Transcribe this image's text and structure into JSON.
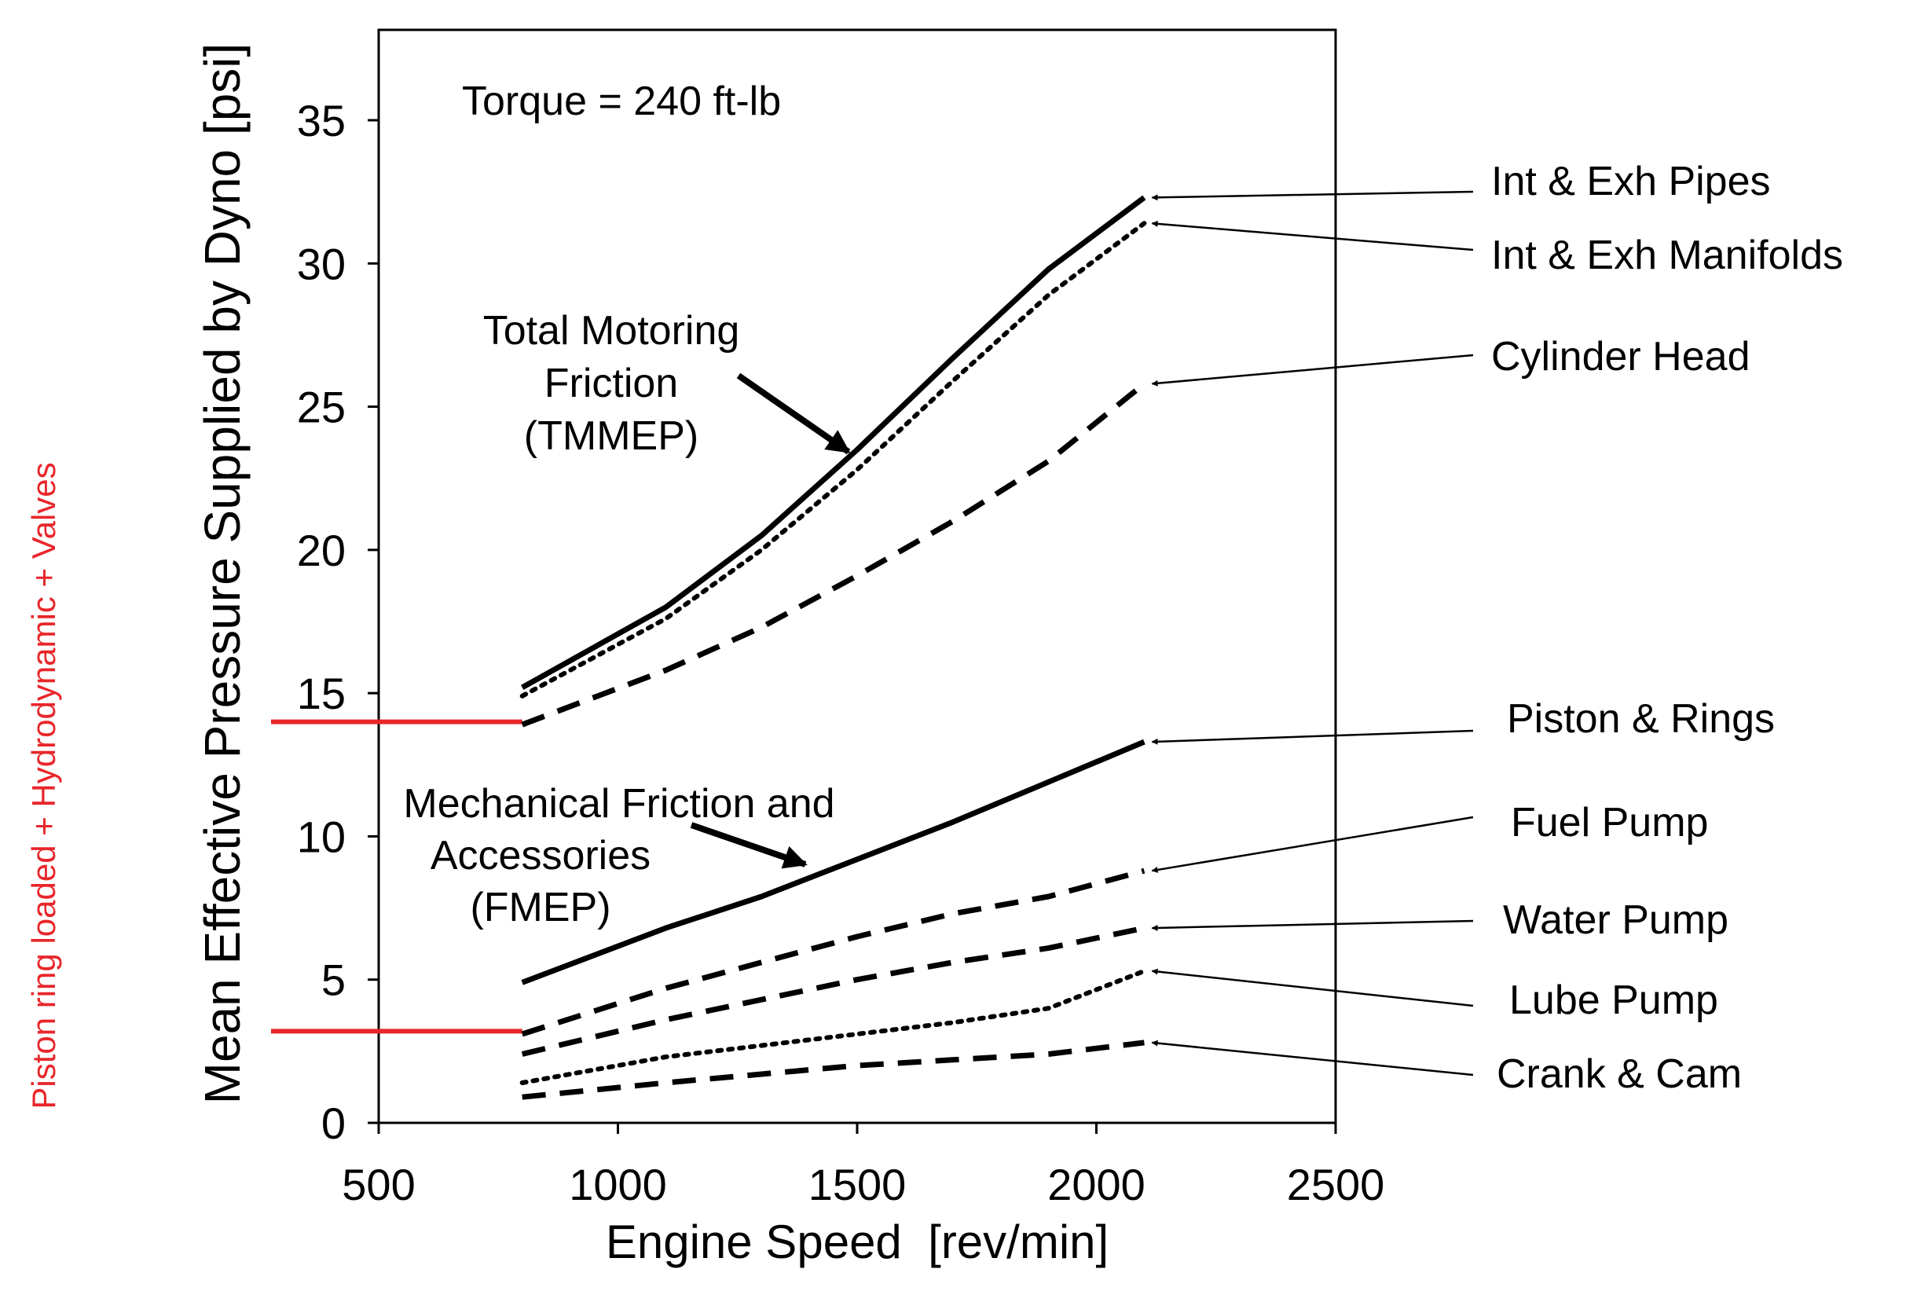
{
  "chart_data": {
    "type": "line",
    "xlabel": "Engine Speed  [rev/min]",
    "ylabel": "Mean Effective Pressure Supplied by Dyno [psi]",
    "xlim": [
      500,
      2500
    ],
    "ylim": [
      0,
      35
    ],
    "xticks": [
      500,
      1000,
      1500,
      2000,
      2500
    ],
    "yticks": [
      0,
      5,
      10,
      15,
      20,
      25,
      30,
      35
    ],
    "grid": false,
    "annotations": {
      "torque": "Torque = 240 ft-lb",
      "tmmep": [
        "Total Motoring",
        "Friction",
        "(TMMEP)"
      ],
      "fmep": [
        "Mechanical Friction and",
        "Accessories",
        "(FMEP)"
      ]
    },
    "side_note": "Piston ring loaded + Hydrodynamic + Valves",
    "side_note_color": "#e8262a",
    "highlight_color": "#e8262a",
    "highlight_levels": [
      14,
      3.2
    ],
    "series": [
      {
        "name": "Int & Exh Pipes",
        "style": "solid",
        "x": [
          800,
          1100,
          1300,
          1500,
          1700,
          1900,
          2100
        ],
        "y": [
          15.2,
          18.0,
          20.5,
          23.5,
          26.7,
          29.8,
          32.3
        ]
      },
      {
        "name": "Int & Exh Manifolds",
        "style": "dotted",
        "x": [
          800,
          1100,
          1300,
          1500,
          1700,
          1900,
          2100
        ],
        "y": [
          14.9,
          17.6,
          20.0,
          22.8,
          25.9,
          28.9,
          31.4
        ]
      },
      {
        "name": "Cylinder Head",
        "style": "dashed",
        "x": [
          800,
          1100,
          1300,
          1500,
          1700,
          1900,
          2100
        ],
        "y": [
          13.9,
          15.8,
          17.3,
          19.1,
          21.0,
          23.1,
          25.8
        ]
      },
      {
        "name": "Piston & Rings",
        "style": "solid",
        "x": [
          800,
          1100,
          1300,
          1500,
          1700,
          1900,
          2100
        ],
        "y": [
          4.9,
          6.8,
          7.9,
          9.2,
          10.5,
          11.9,
          13.3
        ]
      },
      {
        "name": "Fuel Pump",
        "style": "dashed",
        "x": [
          800,
          1100,
          1300,
          1500,
          1700,
          1900,
          2100
        ],
        "y": [
          3.1,
          4.7,
          5.6,
          6.5,
          7.3,
          7.9,
          8.8
        ]
      },
      {
        "name": "Water Pump",
        "style": "dashed",
        "x": [
          800,
          1100,
          1300,
          1500,
          1700,
          1900,
          2100
        ],
        "y": [
          2.4,
          3.6,
          4.3,
          5.0,
          5.6,
          6.1,
          6.8
        ]
      },
      {
        "name": "Lube Pump",
        "style": "dotted",
        "x": [
          800,
          1100,
          1300,
          1500,
          1700,
          1900,
          2100
        ],
        "y": [
          1.4,
          2.3,
          2.7,
          3.1,
          3.5,
          4.0,
          5.3
        ]
      },
      {
        "name": "Crank & Cam",
        "style": "dashed",
        "x": [
          800,
          1100,
          1300,
          1500,
          1700,
          1900,
          2100
        ],
        "y": [
          0.9,
          1.4,
          1.7,
          2.0,
          2.2,
          2.4,
          2.8
        ]
      }
    ]
  }
}
